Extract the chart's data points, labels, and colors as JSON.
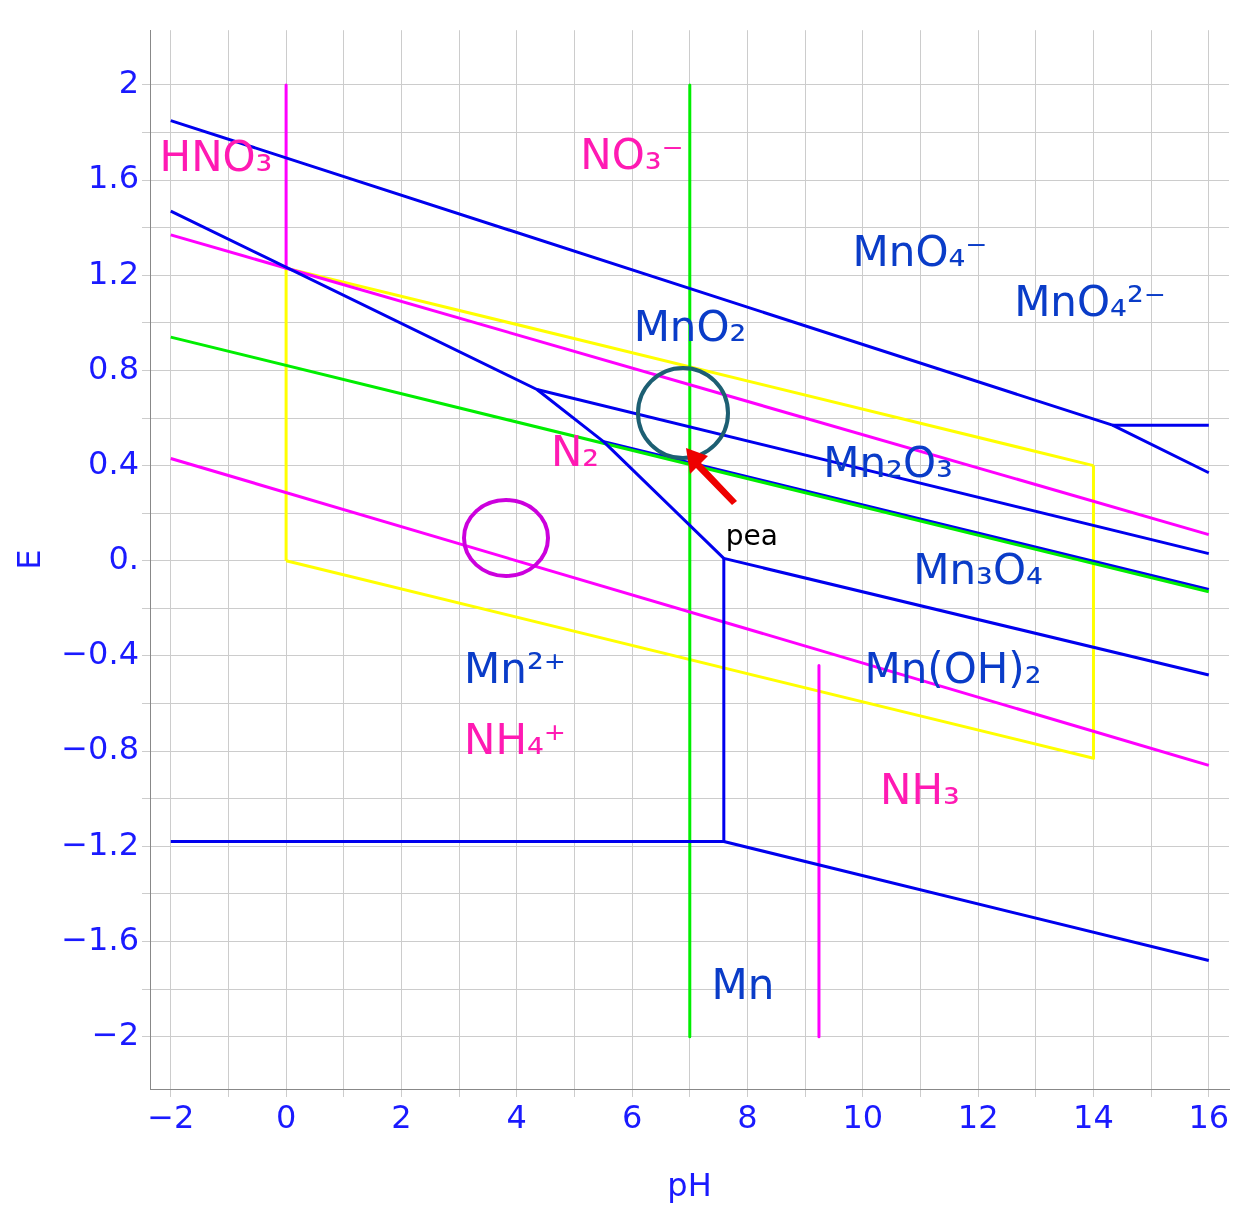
{
  "chart_data": {
    "type": "line",
    "xlabel": "pH",
    "ylabel": "E",
    "xlim": [
      -2.36,
      16.35
    ],
    "ylim": [
      -2.22,
      2.23
    ],
    "xticks": [
      {
        "value": -2,
        "label": "−2"
      },
      {
        "value": -1,
        "label": null
      },
      0,
      {
        "value": 1,
        "label": null
      },
      2,
      {
        "value": 3,
        "label": null
      },
      4,
      {
        "value": 5,
        "label": null
      },
      6,
      {
        "value": 7,
        "label": null
      },
      8,
      {
        "value": 9,
        "label": null
      },
      10,
      {
        "value": 11,
        "label": null
      },
      12,
      {
        "value": 13,
        "label": null
      },
      14,
      {
        "value": 15,
        "label": null
      },
      16
    ],
    "yticks": [
      {
        "value": -2,
        "label": "−2"
      },
      {
        "value": -1.8,
        "label": null
      },
      {
        "value": -1.6,
        "label": "−1.6"
      },
      {
        "value": -1.4,
        "label": null
      },
      {
        "value": -1.2,
        "label": "−1.2"
      },
      {
        "value": -1,
        "label": null
      },
      {
        "value": -0.8,
        "label": "−0.8"
      },
      {
        "value": -0.6,
        "label": null
      },
      {
        "value": -0.4,
        "label": "−0.4"
      },
      {
        "value": -0.2,
        "label": null
      },
      {
        "value": 0,
        "label": "0."
      },
      {
        "value": 0.2,
        "label": null
      },
      0.4,
      {
        "value": 0.6,
        "label": null
      },
      0.8,
      {
        "value": 1,
        "label": null
      },
      1.2,
      {
        "value": 1.4,
        "label": null
      },
      1.6,
      {
        "value": 1.8,
        "label": null
      },
      2
    ],
    "grid": true,
    "legend": false,
    "marker": "none",
    "line_style": "solid",
    "series": [
      {
        "color": "#0000ee",
        "x": [
          -2,
          14.33,
          16
        ],
        "values": [
          1.85,
          0.57,
          0.37
        ]
      },
      {
        "color": "#0000ee",
        "x": [
          14.33,
          16
        ],
        "values": [
          0.57,
          0.57
        ]
      },
      {
        "color": "#0000ee",
        "x": [
          -2,
          4.35,
          5.51,
          7.59
        ],
        "values": [
          1.47,
          0.72,
          0.5,
          0.01
        ]
      },
      {
        "color": "#0000ee",
        "x": [
          4.35,
          16
        ],
        "values": [
          0.72,
          0.03
        ]
      },
      {
        "color": "#00ee00",
        "x": [
          -2,
          16
        ],
        "values": [
          0.94,
          -0.13
        ]
      },
      {
        "color": "#0000ee",
        "x": [
          5.51,
          16
        ],
        "values": [
          0.5,
          -0.12
        ]
      },
      {
        "color": "#0000ee",
        "x": [
          7.59,
          16
        ],
        "values": [
          0.01,
          -0.48
        ]
      },
      {
        "color": "#0000ee",
        "x": [
          7.59,
          7.59
        ],
        "values": [
          0.01,
          -1.18
        ]
      },
      {
        "color": "#0000ee",
        "x": [
          -2,
          7.59,
          16
        ],
        "values": [
          -1.18,
          -1.18,
          -1.68
        ]
      },
      {
        "color": "#ff00ff",
        "x": [
          0,
          0
        ],
        "values": [
          2,
          1.23
        ]
      },
      {
        "color": "#ff00ff",
        "x": [
          -2,
          16
        ],
        "values": [
          1.37,
          0.11
        ]
      },
      {
        "color": "#ff00ff",
        "x": [
          -2,
          16
        ],
        "values": [
          0.43,
          -0.86
        ]
      },
      {
        "color": "#ff00ff",
        "x": [
          9.24,
          9.24
        ],
        "values": [
          -0.44,
          -2
        ]
      },
      {
        "color": "#00ee00",
        "x": [
          7,
          7
        ],
        "values": [
          2,
          -2
        ]
      },
      {
        "color": "#ffff00",
        "x": [
          0,
          0,
          14
        ],
        "values": [
          0,
          1.23,
          0.4
        ]
      },
      {
        "color": "#ffff00",
        "x": [
          0,
          14,
          14
        ],
        "values": [
          0,
          -0.83,
          0.4
        ]
      }
    ],
    "annotations": [
      "HNO₃",
      "NO₃⁻",
      "N₂",
      "NH₄⁺",
      "NH₃",
      "MnO₄⁻",
      "MnO₄²⁻",
      "MnO₂",
      "Mn₂O₃",
      "Mn₃O₄",
      "Mn²⁺",
      "Mn(OH)₂",
      "Mn",
      {
        "text": "pea",
        "x": 7,
        "y": 0.42
      }
    ]
  }
}
